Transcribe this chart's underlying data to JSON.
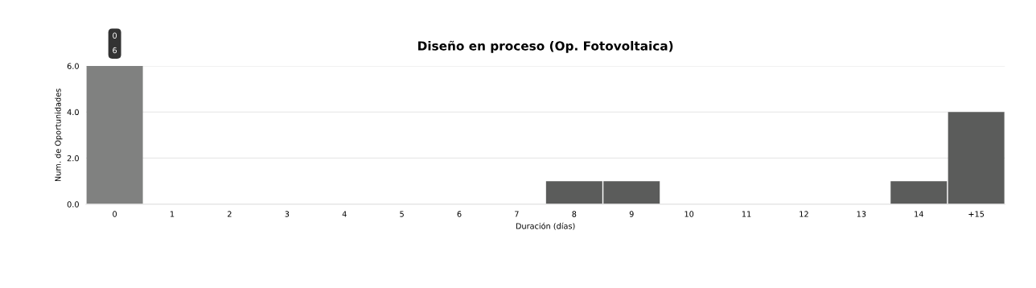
{
  "chart_data": {
    "type": "bar",
    "title": "Diseño en proceso (Op. Fotovoltaica)",
    "xlabel": "Duración (días)",
    "ylabel": "Num. de Oportunidades",
    "categories": [
      "0",
      "1",
      "2",
      "3",
      "4",
      "5",
      "6",
      "7",
      "8",
      "9",
      "10",
      "11",
      "12",
      "13",
      "14",
      "+15"
    ],
    "values": [
      6,
      0,
      0,
      0,
      0,
      0,
      0,
      0,
      1,
      1,
      0,
      0,
      0,
      0,
      1,
      4
    ],
    "colors": [
      "#808180",
      "#5b5c5b",
      "#5b5c5b",
      "#5b5c5b",
      "#5b5c5b",
      "#5b5c5b",
      "#5b5c5b",
      "#5b5c5b",
      "#5b5c5b",
      "#5b5c5b",
      "#5b5c5b",
      "#5b5c5b",
      "#5b5c5b",
      "#5b5c5b",
      "#5b5c5b",
      "#5b5c5b"
    ],
    "ylim": [
      0,
      6
    ],
    "yticks": [
      {
        "value": 0,
        "label": "0.0"
      },
      {
        "value": 2,
        "label": "2.0"
      },
      {
        "value": 4,
        "label": "4.0"
      },
      {
        "value": 6,
        "label": "6.0"
      }
    ],
    "grid": "y",
    "legend": false,
    "annotations": [
      {
        "text": "0\n6",
        "x": "0",
        "y": 6
      }
    ]
  }
}
